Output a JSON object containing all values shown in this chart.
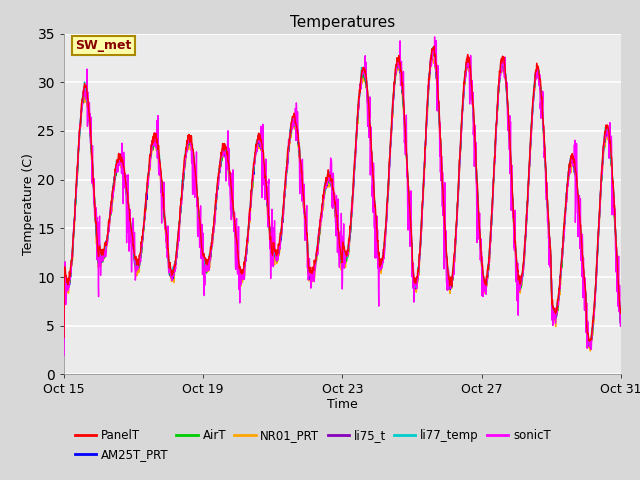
{
  "title": "Temperatures",
  "xlabel": "Time",
  "ylabel": "Temperature (C)",
  "ylim": [
    0,
    35
  ],
  "x_ticks_labels": [
    "Oct 15",
    "Oct 19",
    "Oct 23",
    "Oct 27",
    "Oct 31"
  ],
  "x_ticks_pos": [
    0,
    4,
    8,
    12,
    16
  ],
  "series": {
    "PanelT": {
      "color": "#FF0000",
      "lw": 1.0
    },
    "AM25T_PRT": {
      "color": "#0000FF",
      "lw": 1.0
    },
    "AirT": {
      "color": "#00CC00",
      "lw": 1.0
    },
    "NR01_PRT": {
      "color": "#FFA500",
      "lw": 1.0
    },
    "li75_t": {
      "color": "#8800BB",
      "lw": 1.0
    },
    "li77_temp": {
      "color": "#00CCCC",
      "lw": 1.0
    },
    "sonicT": {
      "color": "#FF00FF",
      "lw": 1.0
    }
  },
  "annotation_text": "SW_met",
  "annotation_facecolor": "#FFFFAA",
  "annotation_edgecolor": "#AA8800",
  "annotation_textcolor": "#880000",
  "figure_facecolor": "#D8D8D8",
  "plot_facecolor": "#EBEBEB",
  "grid_color": "#FFFFFF",
  "n_days": 17,
  "pts_per_day": 144
}
